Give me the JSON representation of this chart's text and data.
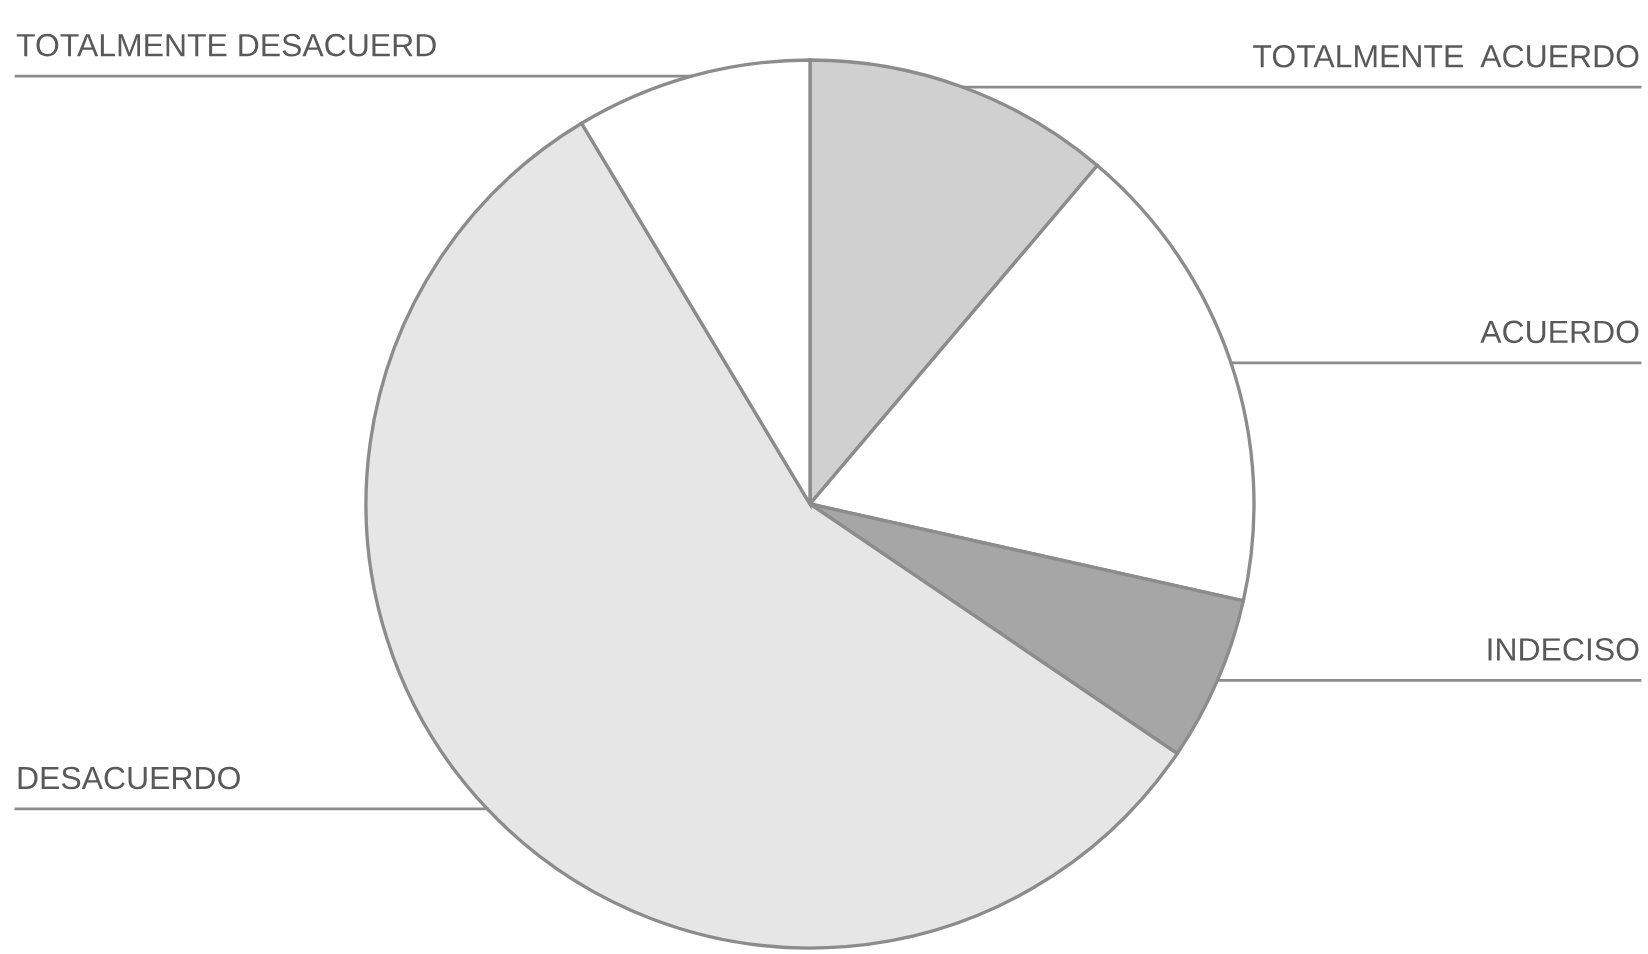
{
  "chart_data": {
    "type": "pie",
    "categories": [
      "TOTALMENTE  ACUERDO",
      "ACUERDO",
      "INDECISO",
      "DESACUERDO",
      "TOTALMENTE DESACUERD"
    ],
    "values": [
      11.2,
      17.3,
      6.0,
      56.9,
      8.6
    ],
    "colors": [
      "#d0d0d0",
      "#ffffff",
      "#a6a6a6",
      "#e6e6e6",
      "#ffffff"
    ],
    "legend": false
  }
}
